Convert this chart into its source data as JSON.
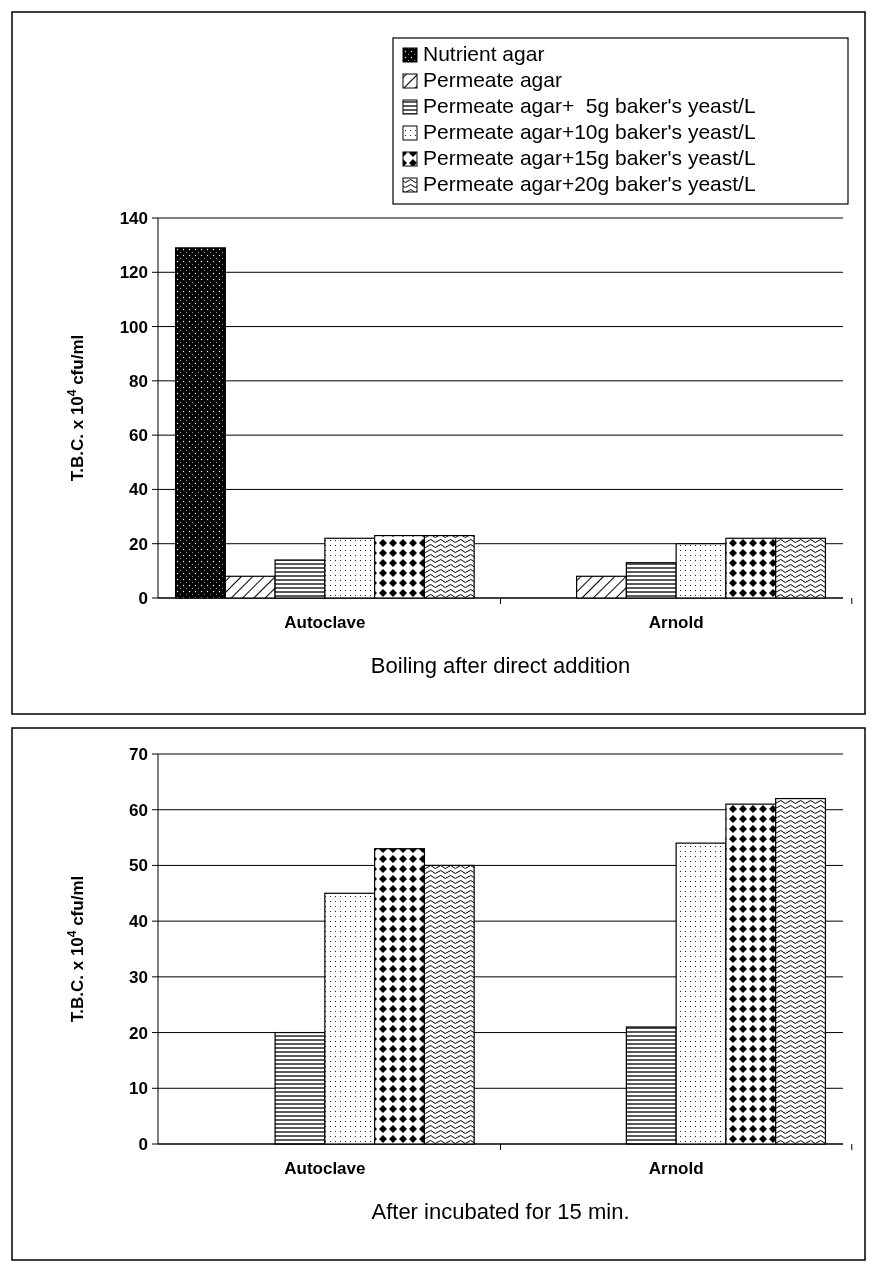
{
  "chart_data": [
    {
      "type": "bar",
      "xlabel": "Boiling after direct addition",
      "ylabel": "T.B.C. x 10$^{4}$ cfu/ml",
      "categories": [
        "Autoclave",
        "Arnold"
      ],
      "ylim": [
        0,
        140
      ],
      "yticks": [
        0,
        20,
        40,
        60,
        80,
        100,
        120,
        140
      ],
      "grid": "y",
      "legend": "top right",
      "series": [
        {
          "name": "Nutrient agar",
          "color": "#000000",
          "values": [
            129,
            null
          ]
        },
        {
          "name": "Permeate agar",
          "color": "#000000",
          "values": [
            8,
            8
          ]
        },
        {
          "name": "Permeate agar+  5g baker's yeast/L",
          "color": "#000000",
          "values": [
            14,
            13
          ]
        },
        {
          "name": "Permeate agar+10g baker's yeast/L",
          "color": "#000000",
          "values": [
            22,
            20
          ]
        },
        {
          "name": "Permeate agar+15g baker's yeast/L",
          "color": "#000000",
          "values": [
            23,
            22
          ]
        },
        {
          "name": "Permeate agar+20g baker's yeast/L",
          "color": "#000000",
          "values": [
            23,
            22
          ]
        }
      ]
    },
    {
      "type": "bar",
      "xlabel": "After incubated for 15 min.",
      "ylabel": "T.B.C. x 10$^{4}$ cfu/ml",
      "categories": [
        "Autoclave",
        "Arnold"
      ],
      "ylim": [
        0,
        70
      ],
      "yticks": [
        0,
        10,
        20,
        30,
        40,
        50,
        60,
        70
      ],
      "grid": "y",
      "series": [
        {
          "color": "#000000",
          "values": [
            null,
            null
          ]
        },
        {
          "color": "#000000",
          "values": [
            null,
            null
          ]
        },
        {
          "color": "#000000",
          "values": [
            20,
            21
          ]
        },
        {
          "color": "#000000",
          "values": [
            45,
            54
          ]
        },
        {
          "color": "#000000",
          "values": [
            53,
            61
          ]
        },
        {
          "color": "#000000",
          "values": [
            50,
            62
          ]
        }
      ]
    }
  ]
}
